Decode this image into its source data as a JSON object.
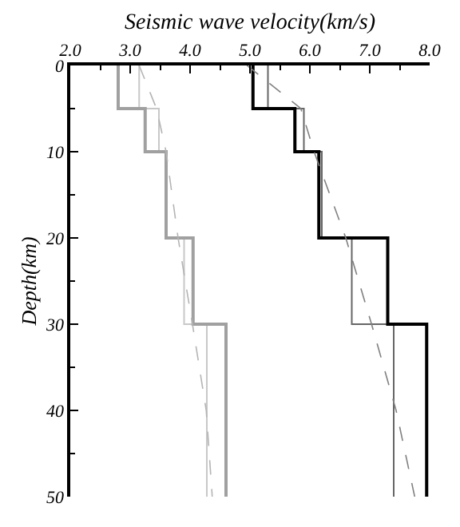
{
  "chart_data": {
    "type": "line",
    "xlabel": "Seismic wave velocity(km/s)",
    "ylabel": "Depth(km)",
    "xlim": [
      2.0,
      8.0
    ],
    "xticks": [
      {
        "value": 2,
        "label": "2.0"
      },
      {
        "value": 3,
        "label": "3.0"
      },
      {
        "value": 4,
        "label": "4.0"
      },
      {
        "value": 5,
        "label": "5.0"
      },
      {
        "value": 6,
        "label": "6.0"
      },
      {
        "value": 7,
        "label": "7.0"
      },
      {
        "value": 8,
        "label": "8.0"
      }
    ],
    "ylim": [
      50,
      0
    ],
    "yticks": [
      0,
      10,
      20,
      30,
      40,
      50
    ],
    "legend": false,
    "marker": "none",
    "series": [
      {
        "color": "#c8c8c8",
        "line_style": "solid",
        "x": [
          3.15,
          3.15,
          3.48,
          3.48,
          3.6,
          3.6,
          3.9,
          3.9,
          4.28,
          4.28
        ],
        "values": [
          0,
          5,
          5,
          10,
          10,
          20,
          20,
          30,
          30,
          50
        ]
      },
      {
        "color": "#a0a0a0",
        "line_style": "solid",
        "x": [
          2.8,
          2.8,
          3.25,
          3.25,
          3.6,
          3.6,
          4.05,
          4.05,
          4.6,
          4.6
        ],
        "values": [
          0,
          5,
          5,
          10,
          10,
          20,
          20,
          30,
          30,
          50
        ]
      },
      {
        "color": "#b4b4b4",
        "line_style": "dashed",
        "x": [
          3.15,
          3.44,
          3.6,
          3.8,
          4.04,
          4.27,
          4.37
        ],
        "values": [
          0,
          5,
          10,
          20,
          30,
          40,
          50
        ]
      },
      {
        "color": "#666666",
        "line_style": "solid",
        "x": [
          5.3,
          5.3,
          5.9,
          5.9,
          6.2,
          6.2,
          6.7,
          6.7,
          7.4,
          7.4
        ],
        "values": [
          0,
          5,
          5,
          10,
          10,
          20,
          20,
          30,
          30,
          50
        ]
      },
      {
        "color": "#000000",
        "line_style": "solid",
        "x": [
          5.05,
          5.05,
          5.75,
          5.75,
          6.15,
          6.15,
          7.3,
          7.3,
          7.95,
          7.95
        ],
        "values": [
          0,
          5,
          5,
          10,
          10,
          20,
          20,
          30,
          30,
          50
        ]
      },
      {
        "color": "#808080",
        "line_style": "dashed",
        "x": [
          4.95,
          5.85,
          6.07,
          6.6,
          7.03,
          7.44,
          7.75
        ],
        "values": [
          0,
          5,
          10,
          20,
          30,
          40,
          50
        ]
      }
    ]
  }
}
